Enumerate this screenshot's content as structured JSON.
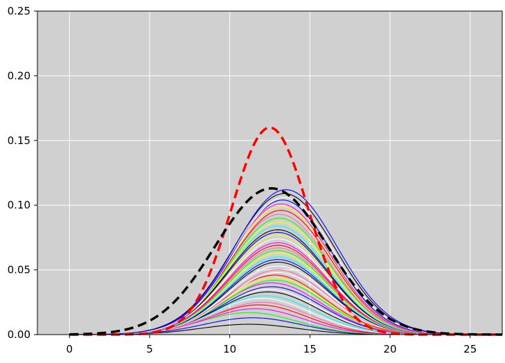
{
  "chart_data": {
    "type": "line",
    "title": "",
    "xlabel": "",
    "ylabel": "",
    "xlim": [
      -2,
      27
    ],
    "ylim": [
      0,
      0.25
    ],
    "x_ticks": [
      0,
      5,
      10,
      15,
      20,
      25
    ],
    "x_tick_labels": [
      "0",
      "5",
      "10",
      "15",
      "20",
      "25"
    ],
    "y_ticks": [
      0,
      0.05,
      0.1,
      0.15,
      0.2,
      0.25
    ],
    "y_tick_labels": [
      "0.00",
      "0.05",
      "0.10",
      "0.15",
      "0.20",
      "0.25"
    ],
    "grid": true,
    "legend": "none",
    "background_color": "#d0d0d0",
    "grid_color": "#ffffff",
    "palette": [
      "#ffffff",
      "#000000",
      "#0000ff",
      "#ff00ff",
      "#00ff00",
      "#ff0000",
      "#ffff00",
      "#00ffff",
      "#ff69b4",
      "#8a2be2"
    ],
    "thin_series": [
      {
        "peak": 0.008,
        "center": 11.2,
        "width": 3.0,
        "color": "#000000"
      },
      {
        "peak": 0.013,
        "center": 11.4,
        "width": 3.0,
        "color": "#0000ff"
      },
      {
        "peak": 0.017,
        "center": 11.2,
        "width": 3.0,
        "color": "#00ff00"
      },
      {
        "peak": 0.02,
        "center": 11.6,
        "width": 3.0,
        "color": "#ff00ff"
      },
      {
        "peak": 0.023,
        "center": 11.8,
        "width": 3.0,
        "color": "#ff0000"
      },
      {
        "peak": 0.025,
        "center": 12.0,
        "width": 3.0,
        "color": "#ff69b4"
      },
      {
        "peak": 0.028,
        "center": 12.0,
        "width": 3.1,
        "color": "#ffffff"
      },
      {
        "peak": 0.03,
        "center": 12.2,
        "width": 3.1,
        "color": "#00ffff"
      },
      {
        "peak": 0.033,
        "center": 12.4,
        "width": 3.1,
        "color": "#000000"
      },
      {
        "peak": 0.035,
        "center": 12.4,
        "width": 3.1,
        "color": "#ffffff"
      },
      {
        "peak": 0.037,
        "center": 12.6,
        "width": 3.1,
        "color": "#0000ff"
      },
      {
        "peak": 0.04,
        "center": 12.6,
        "width": 3.1,
        "color": "#ff00ff"
      },
      {
        "peak": 0.042,
        "center": 12.8,
        "width": 3.1,
        "color": "#00ff00"
      },
      {
        "peak": 0.044,
        "center": 12.8,
        "width": 3.1,
        "color": "#ffff00"
      },
      {
        "peak": 0.046,
        "center": 12.8,
        "width": 3.1,
        "color": "#ff0000"
      },
      {
        "peak": 0.048,
        "center": 13.0,
        "width": 3.1,
        "color": "#ffffff"
      },
      {
        "peak": 0.05,
        "center": 13.0,
        "width": 3.1,
        "color": "#ff69b4"
      },
      {
        "peak": 0.053,
        "center": 13.0,
        "width": 3.1,
        "color": "#ffffff"
      },
      {
        "peak": 0.056,
        "center": 13.0,
        "width": 3.1,
        "color": "#000000"
      },
      {
        "peak": 0.058,
        "center": 13.0,
        "width": 3.1,
        "color": "#0000ff"
      },
      {
        "peak": 0.06,
        "center": 13.0,
        "width": 3.1,
        "color": "#00ffff"
      },
      {
        "peak": 0.063,
        "center": 13.0,
        "width": 3.1,
        "color": "#ffff00"
      },
      {
        "peak": 0.065,
        "center": 13.0,
        "width": 3.1,
        "color": "#00ff00"
      },
      {
        "peak": 0.067,
        "center": 13.0,
        "width": 3.1,
        "color": "#ff69b4"
      },
      {
        "peak": 0.069,
        "center": 13.0,
        "width": 3.1,
        "color": "#ff0000"
      },
      {
        "peak": 0.071,
        "center": 13.0,
        "width": 3.1,
        "color": "#ff00ff"
      },
      {
        "peak": 0.074,
        "center": 13.0,
        "width": 3.1,
        "color": "#ffffff"
      },
      {
        "peak": 0.077,
        "center": 13.0,
        "width": 3.1,
        "color": "#ffff00"
      },
      {
        "peak": 0.079,
        "center": 13.0,
        "width": 3.1,
        "color": "#0000ff"
      },
      {
        "peak": 0.081,
        "center": 13.0,
        "width": 3.1,
        "color": "#000000"
      },
      {
        "peak": 0.084,
        "center": 13.0,
        "width": 3.1,
        "color": "#00ffff"
      },
      {
        "peak": 0.087,
        "center": 13.1,
        "width": 3.1,
        "color": "#ffff00"
      },
      {
        "peak": 0.09,
        "center": 13.1,
        "width": 3.1,
        "color": "#00ff00"
      },
      {
        "peak": 0.093,
        "center": 13.1,
        "width": 3.1,
        "color": "#ff69b4"
      },
      {
        "peak": 0.096,
        "center": 13.2,
        "width": 3.1,
        "color": "#ff0000"
      },
      {
        "peak": 0.099,
        "center": 13.2,
        "width": 3.1,
        "color": "#ffff00"
      },
      {
        "peak": 0.101,
        "center": 13.2,
        "width": 3.1,
        "color": "#ff00ff"
      },
      {
        "peak": 0.104,
        "center": 13.3,
        "width": 3.1,
        "color": "#0000ff"
      },
      {
        "peak": 0.106,
        "center": 13.4,
        "width": 3.1,
        "color": "#ffffff"
      },
      {
        "peak": 0.109,
        "center": 13.4,
        "width": 3.2,
        "color": "#000000"
      },
      {
        "peak": 0.112,
        "center": 13.5,
        "width": 3.2,
        "color": "#0000ff"
      }
    ],
    "bold_series": [
      {
        "peak": 0.16,
        "center": 12.5,
        "width": 2.4,
        "color": "#ff0000",
        "dashed": true
      },
      {
        "peak": 0.113,
        "center": 12.6,
        "width": 3.5,
        "color": "#000000",
        "dashed": true
      }
    ],
    "curve_x_range": [
      0,
      27
    ]
  }
}
